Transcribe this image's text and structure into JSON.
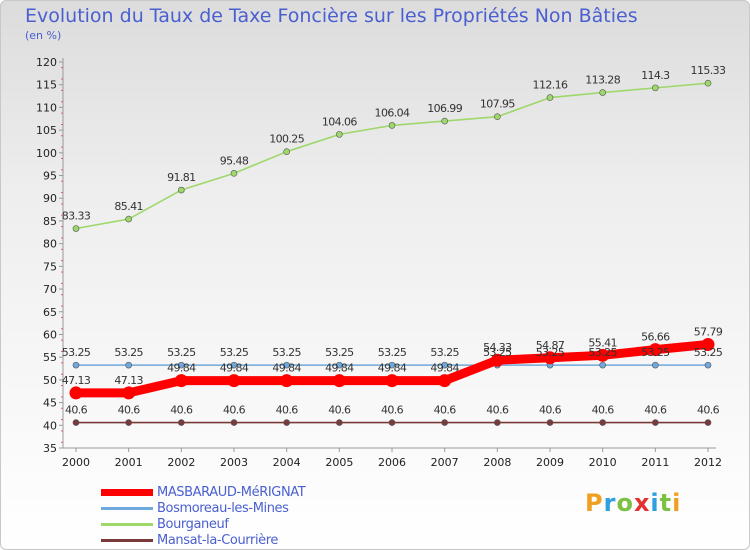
{
  "title": "Evolution du Taux de Taxe Foncière sur les Propriétés Non Bâties",
  "subtitle": "(en %)",
  "brand": {
    "text": "Proxiti",
    "colors": [
      "#f0a020",
      "#2f9fe0",
      "#7cc142",
      "#e53030",
      "#2f9fe0",
      "#7cc142",
      "#f0a020"
    ]
  },
  "chart_data": {
    "type": "line",
    "x": [
      "2000",
      "2001",
      "2002",
      "2003",
      "2004",
      "2005",
      "2006",
      "2007",
      "2008",
      "2009",
      "2010",
      "2011",
      "2012"
    ],
    "ylim": [
      35,
      120
    ],
    "yticks": [
      35,
      40,
      45,
      50,
      55,
      60,
      65,
      70,
      75,
      80,
      85,
      90,
      95,
      100,
      105,
      110,
      115,
      120
    ],
    "grid": false,
    "legend_position": "bottom-left",
    "series": [
      {
        "name": "MASBARAUD-MéRIGNAT",
        "color": "#ff0000",
        "highlight": true,
        "values": [
          47.13,
          47.13,
          49.84,
          49.84,
          49.84,
          49.84,
          49.84,
          49.84,
          54.33,
          54.87,
          55.41,
          56.66,
          57.79
        ],
        "labels": [
          "47.13",
          "47.13",
          "49.84",
          "49.84",
          "49.84",
          "49.84",
          "49.84",
          "49.84",
          "54.33",
          "54.87",
          "55.41",
          "56.66",
          "57.79"
        ]
      },
      {
        "name": "Bosmoreau-les-Mines",
        "color": "#6fa8dc",
        "highlight": false,
        "values": [
          53.25,
          53.25,
          53.25,
          53.25,
          53.25,
          53.25,
          53.25,
          53.25,
          53.25,
          53.25,
          53.25,
          53.25,
          53.25
        ],
        "labels": [
          "53.25",
          "53.25",
          "53.25",
          "53.25",
          "53.25",
          "53.25",
          "53.25",
          "53.25",
          "53.25",
          "53.25",
          "53.25",
          "53.25",
          "53.25"
        ]
      },
      {
        "name": "Bourganeuf",
        "color": "#9ed86a",
        "highlight": false,
        "values": [
          83.33,
          85.41,
          91.81,
          95.48,
          100.25,
          104.06,
          106.04,
          106.99,
          107.95,
          112.16,
          113.28,
          114.3,
          115.33
        ],
        "labels": [
          "83.33",
          "85.41",
          "91.81",
          "95.48",
          "100.25",
          "104.06",
          "106.04",
          "106.99",
          "107.95",
          "112.16",
          "113.28",
          "114.3",
          "115.33"
        ]
      },
      {
        "name": "Mansat-la-Courrière",
        "color": "#7a3a3a",
        "highlight": false,
        "values": [
          40.6,
          40.6,
          40.6,
          40.6,
          40.6,
          40.6,
          40.6,
          40.6,
          40.6,
          40.6,
          40.6,
          40.6,
          40.6
        ],
        "labels": [
          "40.6",
          "40.6",
          "40.6",
          "40.6",
          "40.6",
          "40.6",
          "40.6",
          "40.6",
          "40.6",
          "40.6",
          "40.6",
          "40.6",
          "40.6"
        ]
      }
    ]
  }
}
